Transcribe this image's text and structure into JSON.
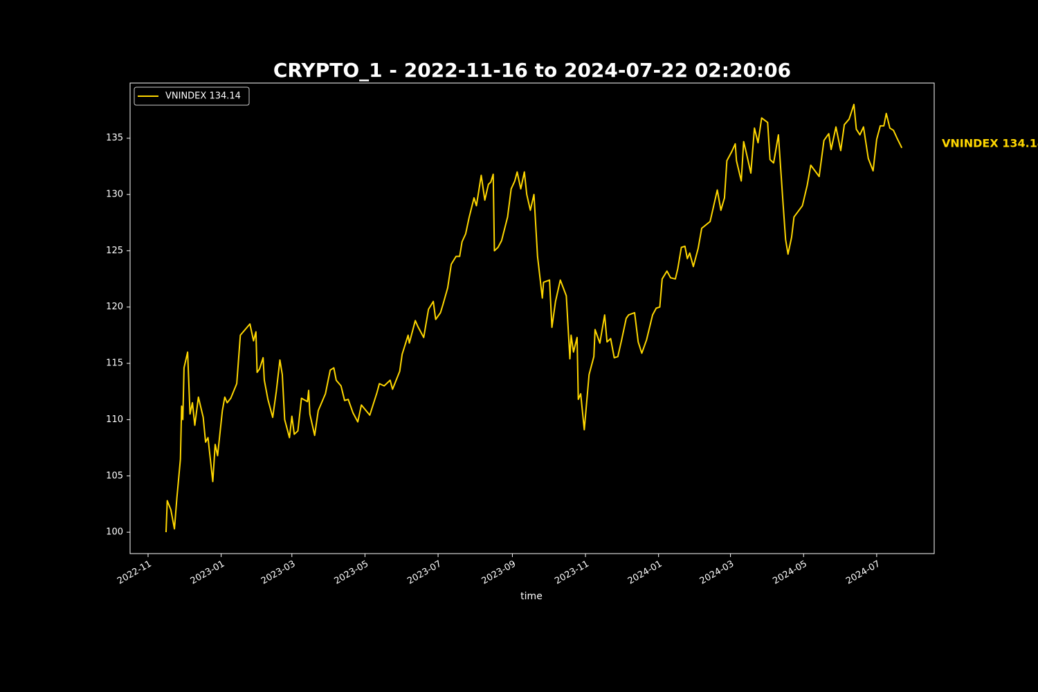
{
  "chart_data": {
    "type": "line",
    "title": "CRYPTO_1 - 2022-11-16 to 2024-07-22 02:20:06",
    "xlabel": "time",
    "x": [
      "2022-11-16",
      "2022-11-17",
      "2022-11-20",
      "2022-11-23",
      "2022-11-25",
      "2022-11-28",
      "2022-11-29",
      "2022-11-30",
      "2022-12-01",
      "2022-12-04",
      "2022-12-06",
      "2022-12-08",
      "2022-12-10",
      "2022-12-13",
      "2022-12-17",
      "2022-12-19",
      "2022-12-21",
      "2022-12-25",
      "2022-12-27",
      "2022-12-29",
      "2023-01-02",
      "2023-01-04",
      "2023-01-06",
      "2023-01-09",
      "2023-01-14",
      "2023-01-17",
      "2023-01-25",
      "2023-01-28",
      "2023-01-30",
      "2023-01-31",
      "2023-02-02",
      "2023-02-05",
      "2023-02-06",
      "2023-02-09",
      "2023-02-13",
      "2023-02-16",
      "2023-02-19",
      "2023-02-21",
      "2023-02-23",
      "2023-02-27",
      "2023-03-01",
      "2023-03-03",
      "2023-03-06",
      "2023-03-09",
      "2023-03-14",
      "2023-03-15",
      "2023-03-16",
      "2023-03-20",
      "2023-03-23",
      "2023-03-29",
      "2023-04-02",
      "2023-04-05",
      "2023-04-07",
      "2023-04-11",
      "2023-04-14",
      "2023-04-17",
      "2023-04-21",
      "2023-04-25",
      "2023-04-28",
      "2023-05-05",
      "2023-05-11",
      "2023-05-13",
      "2023-05-17",
      "2023-05-22",
      "2023-05-24",
      "2023-05-30",
      "2023-06-01",
      "2023-06-06",
      "2023-06-07",
      "2023-06-12",
      "2023-06-14",
      "2023-06-19",
      "2023-06-23",
      "2023-06-27",
      "2023-06-29",
      "2023-07-03",
      "2023-07-05",
      "2023-07-09",
      "2023-07-12",
      "2023-07-16",
      "2023-07-19",
      "2023-07-21",
      "2023-07-24",
      "2023-07-27",
      "2023-07-31",
      "2023-08-02",
      "2023-08-06",
      "2023-08-09",
      "2023-08-12",
      "2023-08-14",
      "2023-08-16",
      "2023-08-17",
      "2023-08-20",
      "2023-08-23",
      "2023-08-28",
      "2023-08-31",
      "2023-09-03",
      "2023-09-05",
      "2023-09-08",
      "2023-09-11",
      "2023-09-13",
      "2023-09-16",
      "2023-09-19",
      "2023-09-22",
      "2023-09-26",
      "2023-09-27",
      "2023-10-02",
      "2023-10-04",
      "2023-10-07",
      "2023-10-11",
      "2023-10-16",
      "2023-10-19",
      "2023-10-20",
      "2023-10-22",
      "2023-10-25",
      "2023-10-26",
      "2023-10-28",
      "2023-10-31",
      "2023-11-04",
      "2023-11-08",
      "2023-11-09",
      "2023-11-13",
      "2023-11-17",
      "2023-11-19",
      "2023-11-22",
      "2023-11-25",
      "2023-11-28",
      "2023-12-01",
      "2023-12-05",
      "2023-12-07",
      "2023-12-12",
      "2023-12-15",
      "2023-12-18",
      "2023-12-22",
      "2023-12-27",
      "2023-12-30",
      "2024-01-02",
      "2024-01-04",
      "2024-01-08",
      "2024-01-11",
      "2024-01-15",
      "2024-01-17",
      "2024-01-20",
      "2024-01-23",
      "2024-01-25",
      "2024-01-27",
      "2024-01-30",
      "2024-02-03",
      "2024-02-06",
      "2024-02-13",
      "2024-02-19",
      "2024-02-22",
      "2024-02-25",
      "2024-02-27",
      "2024-03-02",
      "2024-03-05",
      "2024-03-06",
      "2024-03-10",
      "2024-03-12",
      "2024-03-14",
      "2024-03-18",
      "2024-03-21",
      "2024-03-24",
      "2024-03-27",
      "2024-04-01",
      "2024-04-03",
      "2024-04-06",
      "2024-04-10",
      "2024-04-14",
      "2024-04-16",
      "2024-04-18",
      "2024-04-21",
      "2024-04-23",
      "2024-04-30",
      "2024-05-04",
      "2024-05-07",
      "2024-05-14",
      "2024-05-18",
      "2024-05-22",
      "2024-05-24",
      "2024-05-28",
      "2024-06-01",
      "2024-06-04",
      "2024-06-08",
      "2024-06-12",
      "2024-06-14",
      "2024-06-17",
      "2024-06-20",
      "2024-06-24",
      "2024-06-28",
      "2024-07-01",
      "2024-07-04",
      "2024-07-07",
      "2024-07-09",
      "2024-07-12",
      "2024-07-15",
      "2024-07-18",
      "2024-07-22"
    ],
    "series": [
      {
        "name": "VNINDEX 134.14",
        "color": "#ffd700",
        "values": [
          100.0,
          102.8,
          102.0,
          100.3,
          103.0,
          106.5,
          111.2,
          110.0,
          114.6,
          116.0,
          110.5,
          111.5,
          109.5,
          112.0,
          110.2,
          108.0,
          108.4,
          104.5,
          107.8,
          106.8,
          110.8,
          112.0,
          111.5,
          111.9,
          113.2,
          117.5,
          118.5,
          117.0,
          117.8,
          114.2,
          114.5,
          115.5,
          113.5,
          111.8,
          110.2,
          112.5,
          115.3,
          114.0,
          110.0,
          108.4,
          110.3,
          108.7,
          109.0,
          111.9,
          111.6,
          112.6,
          110.5,
          108.6,
          110.8,
          112.3,
          114.4,
          114.6,
          113.5,
          113.0,
          111.7,
          111.8,
          110.6,
          109.8,
          111.3,
          110.4,
          112.4,
          113.2,
          113.0,
          113.5,
          112.7,
          114.3,
          115.8,
          117.5,
          116.8,
          118.8,
          118.3,
          117.3,
          119.8,
          120.5,
          118.9,
          119.5,
          120.2,
          121.7,
          123.8,
          124.5,
          124.5,
          125.8,
          126.5,
          128.0,
          129.7,
          129.0,
          131.7,
          129.5,
          130.9,
          131.1,
          131.8,
          125.0,
          125.3,
          125.9,
          128.0,
          130.5,
          131.2,
          132.0,
          130.5,
          132.0,
          130.0,
          128.6,
          130.0,
          124.5,
          120.8,
          122.2,
          122.4,
          118.2,
          120.5,
          122.4,
          121.0,
          115.4,
          117.5,
          116.0,
          117.3,
          111.8,
          112.3,
          109.1,
          114.0,
          115.6,
          118.0,
          116.8,
          119.3,
          116.9,
          117.2,
          115.5,
          115.6,
          117.0,
          119.0,
          119.3,
          119.5,
          116.9,
          115.9,
          117.1,
          119.3,
          119.9,
          120.0,
          122.5,
          123.2,
          122.6,
          122.5,
          123.4,
          125.3,
          125.4,
          124.3,
          124.8,
          123.6,
          125.2,
          127.0,
          127.6,
          130.4,
          128.6,
          129.7,
          133.0,
          133.8,
          134.5,
          133.0,
          131.2,
          134.7,
          133.8,
          131.9,
          135.9,
          134.6,
          136.8,
          136.4,
          133.1,
          132.8,
          135.3,
          129.0,
          126.0,
          124.7,
          126.2,
          128.0,
          129.0,
          130.8,
          132.6,
          131.6,
          134.8,
          135.4,
          134.0,
          136.0,
          133.9,
          136.2,
          136.7,
          138.0,
          135.8,
          135.3,
          136.0,
          133.2,
          132.1,
          134.9,
          136.1,
          136.1,
          137.2,
          135.9,
          135.7,
          135.0,
          134.14
        ]
      }
    ],
    "xlim": [
      "2022-10-17",
      "2024-08-18"
    ],
    "xticks": [
      {
        "value": "2022-11-01",
        "label": "2022-11"
      },
      {
        "value": "2023-01-01",
        "label": "2023-01"
      },
      {
        "value": "2023-03-01",
        "label": "2023-03"
      },
      {
        "value": "2023-05-01",
        "label": "2023-05"
      },
      {
        "value": "2023-07-01",
        "label": "2023-07"
      },
      {
        "value": "2023-09-01",
        "label": "2023-09"
      },
      {
        "value": "2023-11-01",
        "label": "2023-11"
      },
      {
        "value": "2024-01-01",
        "label": "2024-01"
      },
      {
        "value": "2024-03-01",
        "label": "2024-03"
      },
      {
        "value": "2024-05-01",
        "label": "2024-05"
      },
      {
        "value": "2024-07-01",
        "label": "2024-07"
      }
    ],
    "ylim": [
      98.1,
      139.9
    ],
    "yticks": [
      100,
      105,
      110,
      115,
      120,
      125,
      130,
      135
    ],
    "grid": false,
    "legend": "upper left"
  }
}
